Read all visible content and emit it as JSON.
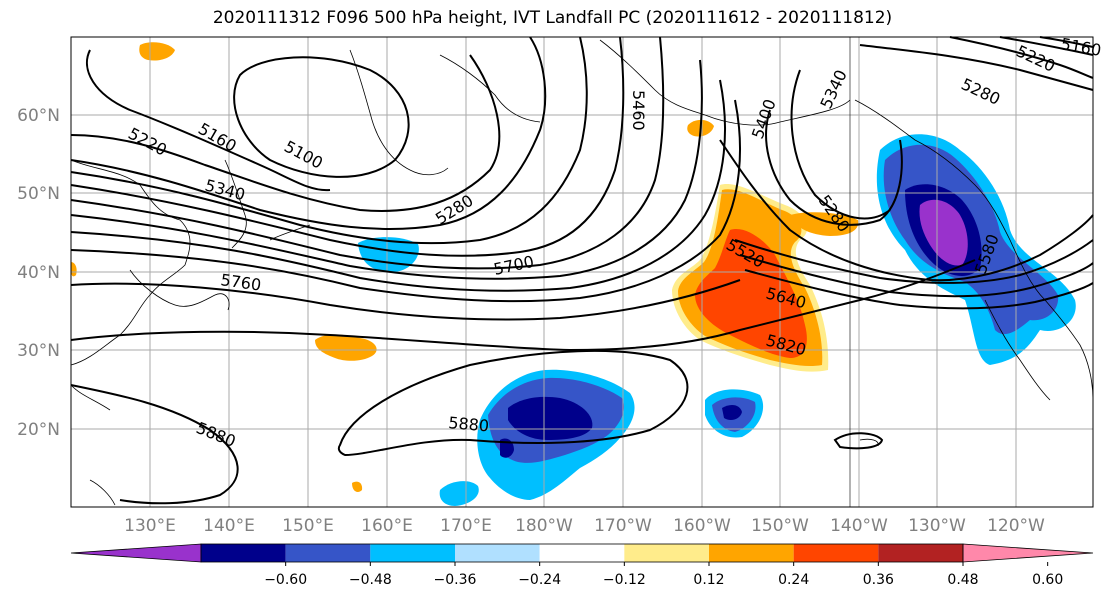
{
  "title": "2020111312 F096 500 hPa height, IVT Landfall PC (2020111612 - 2020111812)",
  "lat_labels": [
    "60°N",
    "50°N",
    "40°N",
    "30°N",
    "20°N"
  ],
  "lon_labels": [
    "130°E",
    "140°E",
    "150°E",
    "160°E",
    "170°E",
    "180°W",
    "170°W",
    "160°W",
    "150°W",
    "140°W",
    "130°W",
    "120°W"
  ],
  "contour_labels": [
    "5220",
    "5160",
    "5100",
    "5340",
    "5280",
    "5760",
    "5700",
    "5520",
    "5640",
    "5820",
    "5880",
    "5880",
    "5460",
    "5400",
    "5340",
    "5280",
    "5220",
    "5160",
    "5280",
    "5580"
  ],
  "colorbar": {
    "ticks": [
      "−0.60",
      "−0.48",
      "−0.36",
      "−0.24",
      "−0.12",
      "0.12",
      "0.24",
      "0.36",
      "0.48",
      "0.60"
    ],
    "colors": [
      "#9932CC",
      "#00008B",
      "#3655C8",
      "#00BFFF",
      "#B0E0FF",
      "#FFFFFF",
      "#FFEC8B",
      "#FFA500",
      "#FF4500",
      "#B22222",
      "#FF88AA"
    ]
  }
}
